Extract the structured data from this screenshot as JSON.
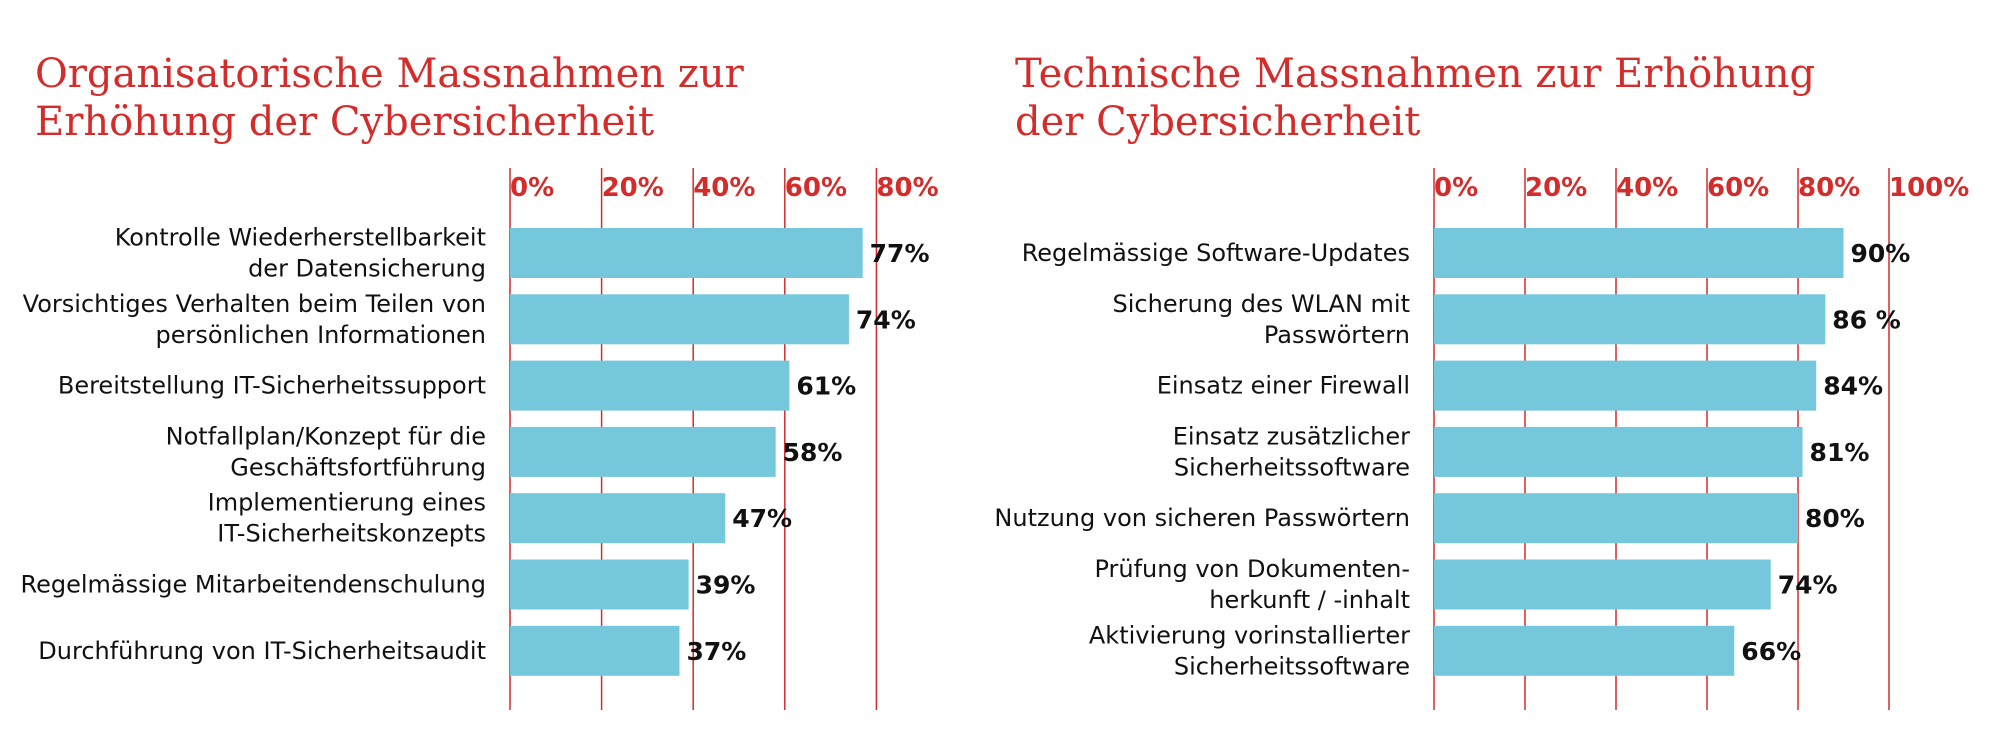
{
  "chart_data": [
    {
      "type": "bar",
      "orientation": "horizontal",
      "title_lines": [
        "Organisatorische Massnahmen zur",
        "Erhöhung der Cybersicherheit"
      ],
      "tick_labels": [
        "0%",
        "20%",
        "40%",
        "60%",
        "80%"
      ],
      "xlim": [
        0,
        80
      ],
      "grid": true,
      "categories": [
        [
          "Kontrolle Wiederherstellbarkeit",
          "der Datensicherung"
        ],
        [
          "Vorsichtiges Verhalten beim Teilen von",
          "persönlichen Informationen"
        ],
        [
          "Bereitstellung IT-Sicherheitssupport"
        ],
        [
          "Notfallplan/Konzept für die",
          "Geschäftsfortführung"
        ],
        [
          "Implementierung eines",
          "IT-Sicherheitskonzepts"
        ],
        [
          "Regelmässige Mitarbeitendenschulung"
        ],
        [
          "Durchführung von IT-Sicherheitsaudit"
        ]
      ],
      "values": [
        77,
        74,
        61,
        58,
        47,
        39,
        37
      ],
      "value_labels": [
        "77%",
        "74%",
        "61%",
        "58%",
        "47%",
        "39%",
        "37%"
      ],
      "colors": {
        "bar": "#75c8dc",
        "grid": "#d42b2b",
        "title": "#d42b2b",
        "tick": "#d42b2b",
        "text": "#111111"
      }
    },
    {
      "type": "bar",
      "orientation": "horizontal",
      "title_lines": [
        "Technische Massnahmen zur Erhöhung",
        "der Cybersicherheit"
      ],
      "tick_labels": [
        "0%",
        "20%",
        "40%",
        "60%",
        "80%",
        "100%"
      ],
      "xlim": [
        0,
        100
      ],
      "grid": true,
      "categories": [
        [
          "Regelmässige Software-Updates"
        ],
        [
          "Sicherung des WLAN mit",
          "Passwörtern"
        ],
        [
          "Einsatz einer Firewall"
        ],
        [
          "Einsatz zusätzlicher",
          "Sicherheitssoftware"
        ],
        [
          "Nutzung von sicheren Passwörtern"
        ],
        [
          "Prüfung von Dokumenten-",
          "herkunft / -inhalt"
        ],
        [
          "Aktivierung vorinstallierter",
          "Sicherheitssoftware"
        ]
      ],
      "values": [
        90,
        86,
        84,
        81,
        80,
        74,
        66
      ],
      "value_labels": [
        "90%",
        "86 %",
        "84%",
        "81%",
        "80%",
        "74%",
        "66%"
      ],
      "colors": {
        "bar": "#75c8dc",
        "grid": "#d42b2b",
        "title": "#d42b2b",
        "tick": "#d42b2b",
        "text": "#111111"
      }
    }
  ]
}
